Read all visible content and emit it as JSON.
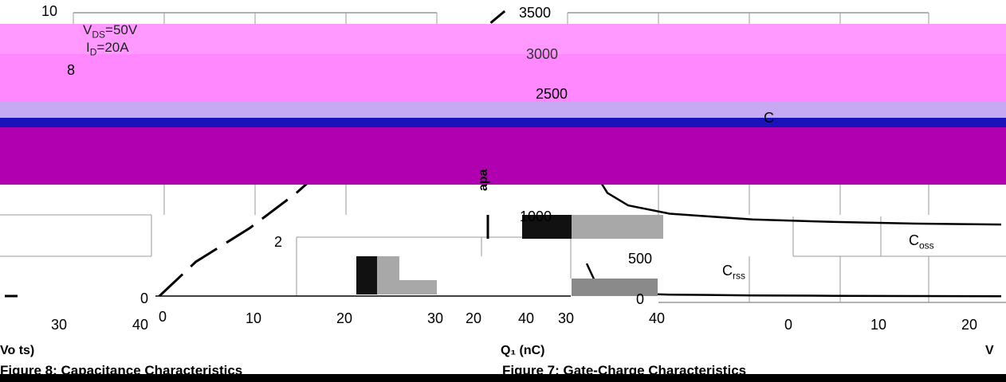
{
  "colors": {
    "magenta": "#ff88ff",
    "magenta_dark": "#ff44ff",
    "lavender": "#c7a8f2",
    "blue": "#1a14b8",
    "purple": "#b000b0",
    "curve": "#000000",
    "grey": "#a8a8a8",
    "grey_dark": "#8a8a8a"
  },
  "left_chart": {
    "annotations": [
      "V",
      "DS",
      "=50V",
      "I",
      "D",
      "=20A"
    ],
    "y_ticks": [
      "10",
      "8",
      "2",
      "0"
    ],
    "x_ticks": [
      "0",
      "10",
      "20",
      "30",
      "40"
    ],
    "x_ticks_alt": [
      "10",
      "20",
      "30",
      "40"
    ],
    "axis_title": "Q₁ (nC)",
    "caption": "Figure 7: Gate-Charge Characteristics"
  },
  "right_chart": {
    "y_ticks": [
      "3500",
      "3000",
      "2500",
      "1000",
      "500",
      "0"
    ],
    "x_ticks": [
      "0",
      "10",
      "20"
    ],
    "curve_labels": [
      "C",
      "C",
      "oss",
      "C",
      "rss"
    ],
    "axis_title_partial": "V",
    "y_axis_partial": "apa",
    "caption": "Figure 8: Capacitance Characteristics"
  },
  "far_left": {
    "x_ticks": [
      "30",
      "40"
    ],
    "axis_title": "Vo ts)"
  },
  "chart_data": [
    {
      "type": "line",
      "title": "",
      "xlabel": "Q₁ (nC)",
      "ylabel": "",
      "series": [
        {
          "x": [
            0,
            4,
            7,
            10,
            15,
            20,
            25,
            30,
            35,
            38
          ],
          "y": [
            0,
            1.2,
            1.8,
            2.4,
            3.6,
            5.0,
            6.4,
            7.8,
            9.2,
            10
          ]
        }
      ],
      "xlim": [
        0,
        40
      ],
      "ylim": [
        0,
        10
      ],
      "grid": true
    },
    {
      "type": "line",
      "title": "",
      "xlabel": "",
      "ylabel": "",
      "series": [
        {
          "name": "C",
          "x": [
            0,
            0.5,
            1,
            2,
            4,
            8,
            12,
            16,
            20
          ],
          "y": [
            2800,
            2600,
            2520,
            2470,
            2440,
            2420,
            2410,
            2400,
            2400
          ]
        },
        {
          "name": "C",
          "x": [
            0,
            0.5,
            1,
            2,
            4,
            8,
            12,
            16,
            20
          ],
          "y": [
            1900,
            1500,
            1300,
            1150,
            1050,
            980,
            950,
            930,
            920
          ]
        },
        {
          "name": "C",
          "x": [
            0,
            0.5,
            1,
            2,
            4,
            8,
            12,
            16,
            20
          ],
          "y": [
            450,
            180,
            120,
            90,
            75,
            65,
            60,
            58,
            56
          ]
        }
      ],
      "xlim": [
        0,
        20
      ],
      "ylim": [
        0,
        3500
      ],
      "grid": true
    }
  ]
}
